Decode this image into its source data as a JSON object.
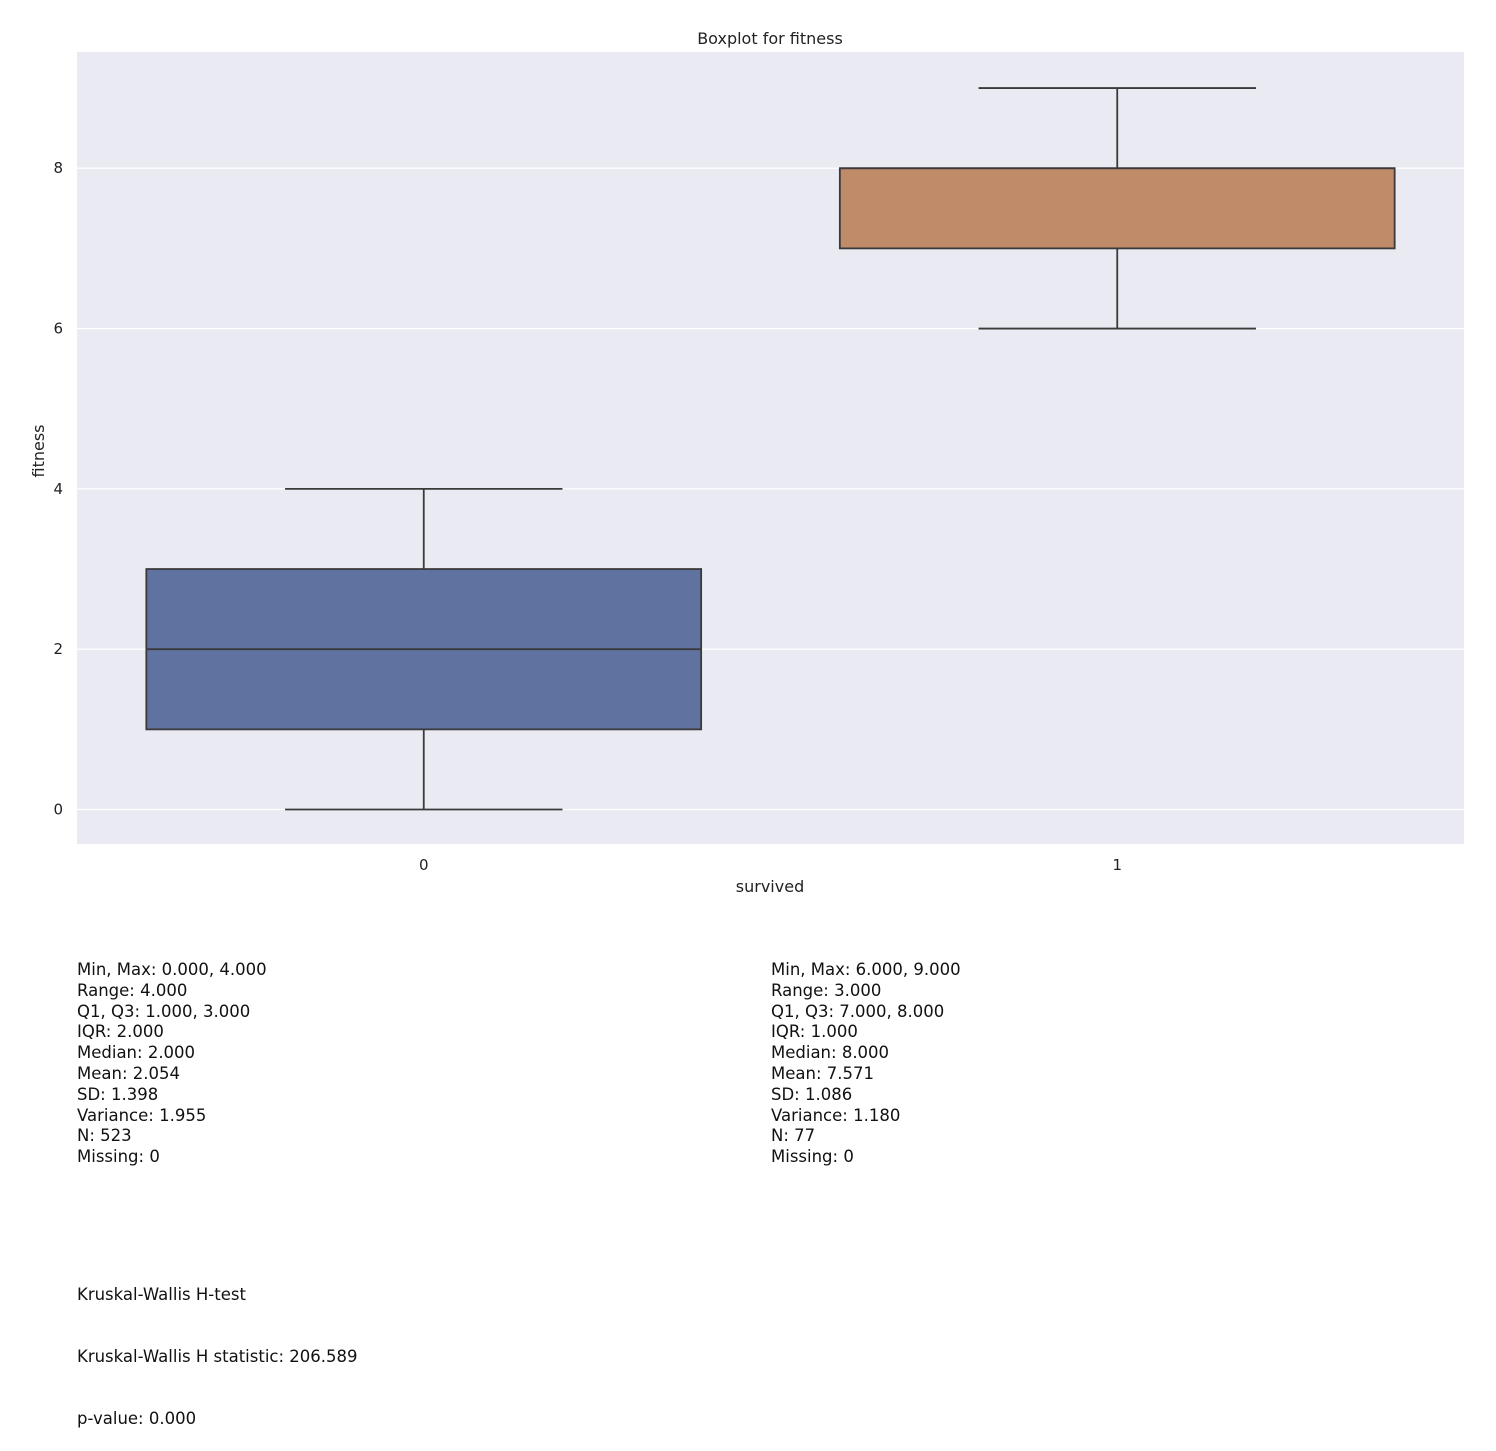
{
  "chart_data": {
    "type": "box",
    "title": "Boxplot for fitness",
    "xlabel": "survived",
    "ylabel": "fitness",
    "categories": [
      "0",
      "1"
    ],
    "yticks": [
      "0",
      "2",
      "4",
      "6",
      "8"
    ],
    "ylim": [
      -0.43,
      9.45
    ],
    "grid": true,
    "boxes": [
      {
        "category": "0",
        "whisker_low": 0,
        "q1": 1,
        "median": 2,
        "q3": 3,
        "whisker_high": 4,
        "color": "#6073a0"
      },
      {
        "category": "1",
        "whisker_low": 6,
        "q1": 7,
        "median": 8,
        "q3": 8,
        "whisker_high": 9,
        "color": "#c08b69"
      }
    ],
    "colors": {
      "background": "#eaeaf2",
      "grid": "#ffffff",
      "line": "#3a3a3a"
    }
  },
  "stats": {
    "left": [
      "Min, Max: 0.000, 4.000",
      "Range: 4.000",
      "Q1, Q3: 1.000, 3.000",
      "IQR: 2.000",
      "Median: 2.000",
      "Mean: 2.054",
      "SD: 1.398",
      "Variance: 1.955",
      "N: 523",
      "Missing: 0"
    ],
    "right": [
      "Min, Max: 6.000, 9.000",
      "Range: 3.000",
      "Q1, Q3: 7.000, 8.000",
      "IQR: 1.000",
      "Median: 8.000",
      "Mean: 7.571",
      "SD: 1.086",
      "Variance: 1.180",
      "N: 77",
      "Missing: 0"
    ]
  },
  "test": {
    "name": "Kruskal-Wallis H-test",
    "statistic": "Kruskal-Wallis H statistic: 206.589",
    "pvalue": "p-value: 0.000"
  }
}
